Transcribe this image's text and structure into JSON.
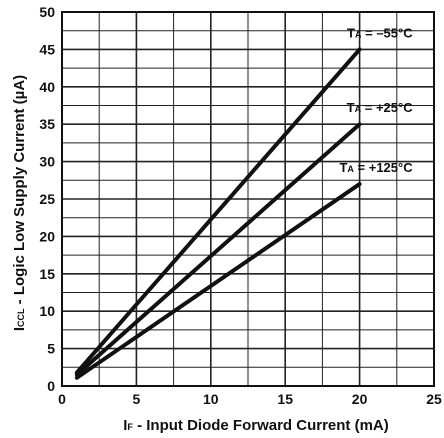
{
  "chart_data": {
    "type": "line",
    "xlabel": {
      "main": "I",
      "sub": "F",
      "rest": " - Input Diode Forward Current (mA)"
    },
    "ylabel": {
      "main": "I",
      "sub": "CCL",
      "rest": " - Logic Low Supply Current (µA)"
    },
    "xlim": [
      0,
      25
    ],
    "ylim": [
      0,
      50
    ],
    "x_ticks": [
      0,
      5,
      10,
      15,
      20,
      25
    ],
    "y_ticks": [
      0,
      5,
      10,
      15,
      20,
      25,
      30,
      35,
      40,
      45,
      50
    ],
    "grid": true,
    "series": [
      {
        "name": {
          "main": "T",
          "sub": "A",
          "rest": " = –55°C"
        },
        "x": [
          1,
          20
        ],
        "y": [
          1.8,
          45
        ]
      },
      {
        "name": {
          "main": "T",
          "sub": "A",
          "rest": " = +25°C"
        },
        "x": [
          1,
          20
        ],
        "y": [
          1.5,
          35
        ]
      },
      {
        "name": {
          "main": "T",
          "sub": "A",
          "rest": " = +125°C"
        },
        "x": [
          1,
          20
        ],
        "y": [
          1.1,
          27
        ]
      }
    ]
  }
}
